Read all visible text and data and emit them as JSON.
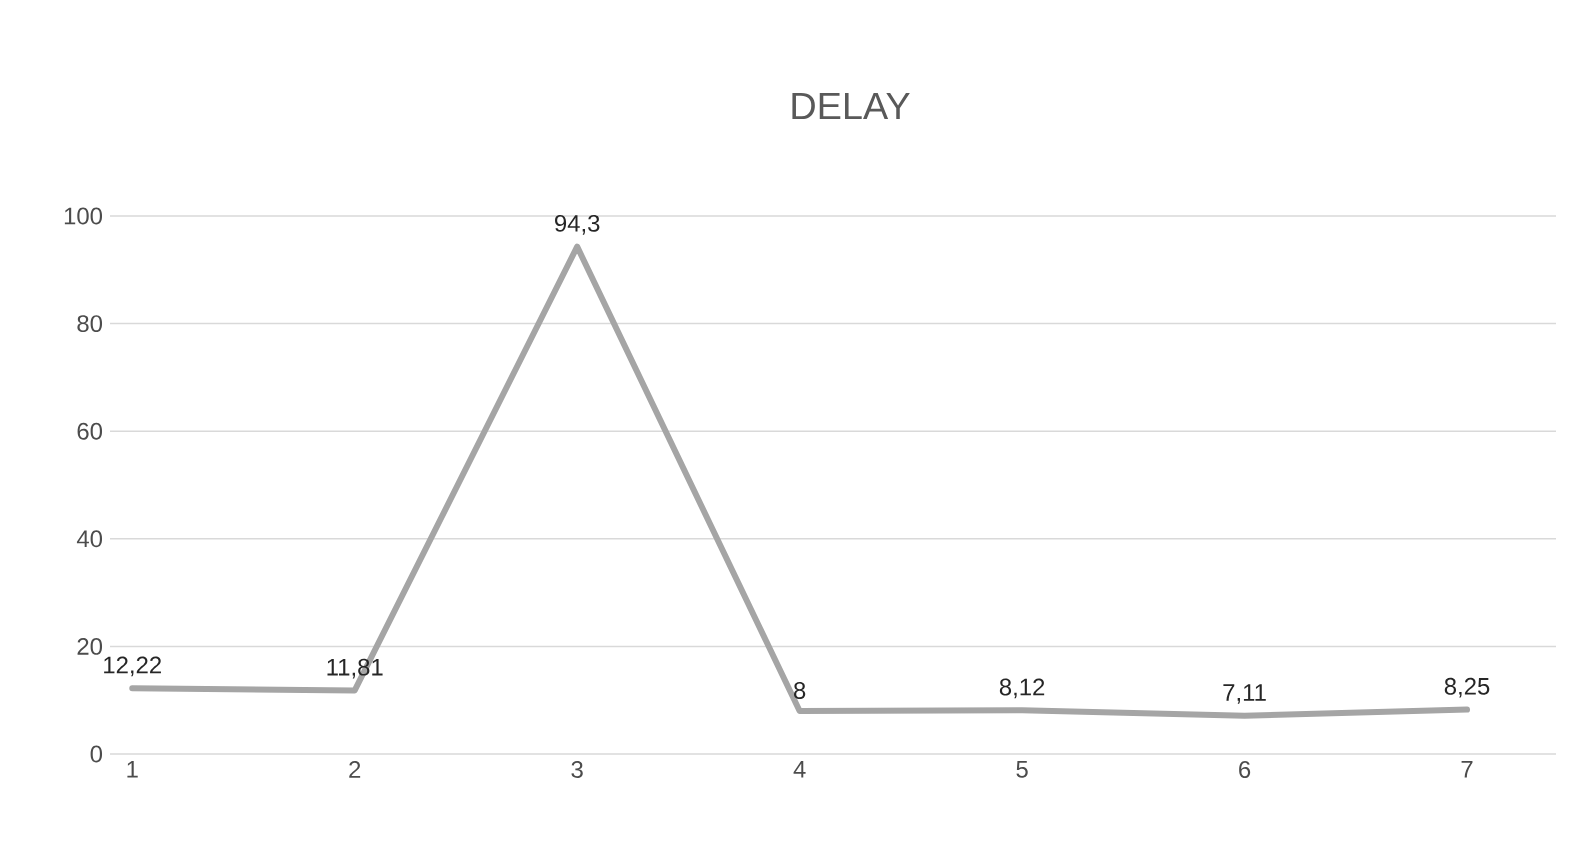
{
  "chart_data": {
    "type": "line",
    "title": "DELAY",
    "categories": [
      "1",
      "2",
      "3",
      "4",
      "5",
      "6",
      "7"
    ],
    "series": [
      {
        "color": "#a5a5a5",
        "values": [
          12.22,
          11.81,
          94.3,
          8,
          8.12,
          7.11,
          8.25
        ],
        "value_labels": [
          "12,22",
          "11,81",
          "94,3",
          "8",
          "8,12",
          "7,11",
          "8,25"
        ]
      }
    ],
    "ylim": [
      0,
      100
    ],
    "yticks": [
      0,
      20,
      40,
      60,
      80,
      100
    ],
    "grid": "y",
    "line_style": "solid"
  }
}
